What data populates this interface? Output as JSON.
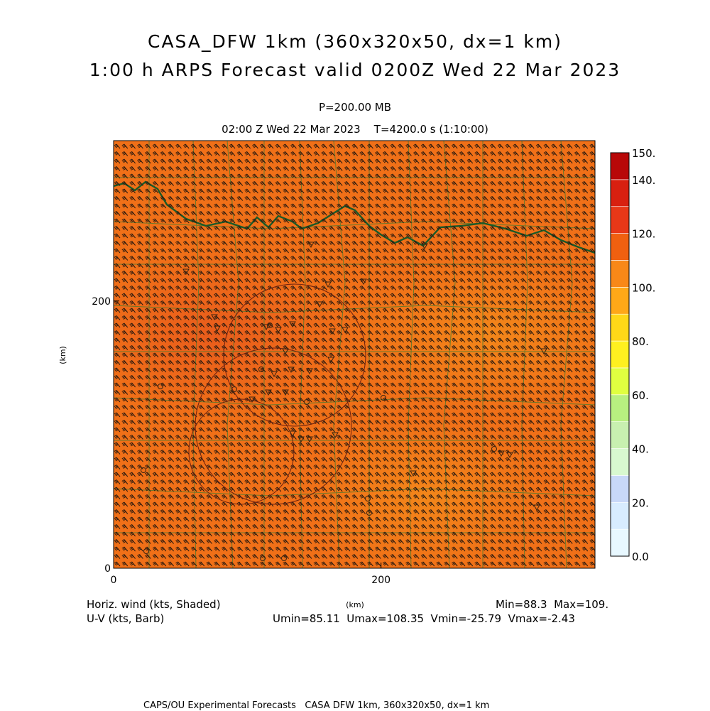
{
  "header": {
    "title_line1": "CASA_DFW 1km (360x320x50, dx=1 km)",
    "title_line2": "1:00 h ARPS Forecast valid 0200Z Wed 22 Mar 2023",
    "pressure": "P=200.00 MB",
    "time": "02:00 Z Wed 22 Mar 2023    T=4200.0 s (1:10:00)"
  },
  "footer": {
    "var1": "Horiz. wind (kts, Shaded)",
    "var2": "U-V (kts, Barb)",
    "minmax": "Min=88.3  Max=109.",
    "uv_stats": "Umin=85.11  Umax=108.35  Vmin=-25.79  Vmax=-2.43",
    "credit": "CAPS/OU Experimental Forecasts   CASA DFW 1km, 360x320x50, dx=1 km"
  },
  "colors": {
    "field_main": "#f07018",
    "field_dark": "#e85a1c",
    "field_light": "#f38a1a",
    "barb": "#2a1a10",
    "county": "#4a7a30",
    "river": "#1a5a28",
    "range_ring": "#6a2010"
  },
  "chart_data": {
    "type": "heatmap",
    "title": "Horiz. wind (kts, Shaded)",
    "xlabel": "(km)",
    "ylabel": "(km)",
    "xlim": [
      0,
      360
    ],
    "ylim": [
      0,
      320
    ],
    "x_ticks": [
      0,
      200
    ],
    "y_ticks": [
      0,
      200
    ],
    "field_min": 88.3,
    "field_max": 109,
    "colorbar": {
      "ticks": [
        "0.0",
        "20.",
        "40.",
        "60.",
        "80.",
        "100.",
        "120.",
        "140.",
        "150."
      ],
      "levels": [
        0,
        10,
        20,
        30,
        40,
        50,
        60,
        70,
        80,
        90,
        100,
        110,
        120,
        130,
        140,
        150
      ],
      "colors": [
        "#e8f8ff",
        "#d8ecff",
        "#c8d8f8",
        "#d8f8d0",
        "#c8f0b0",
        "#b8f080",
        "#e0ff40",
        "#fff020",
        "#ffd818",
        "#ffa818",
        "#f88818",
        "#f06010",
        "#e83818",
        "#d82010",
        "#b80808"
      ]
    },
    "barbs": {
      "u_range": [
        85.11,
        108.35
      ],
      "v_range": [
        -25.79,
        -2.43
      ]
    }
  }
}
